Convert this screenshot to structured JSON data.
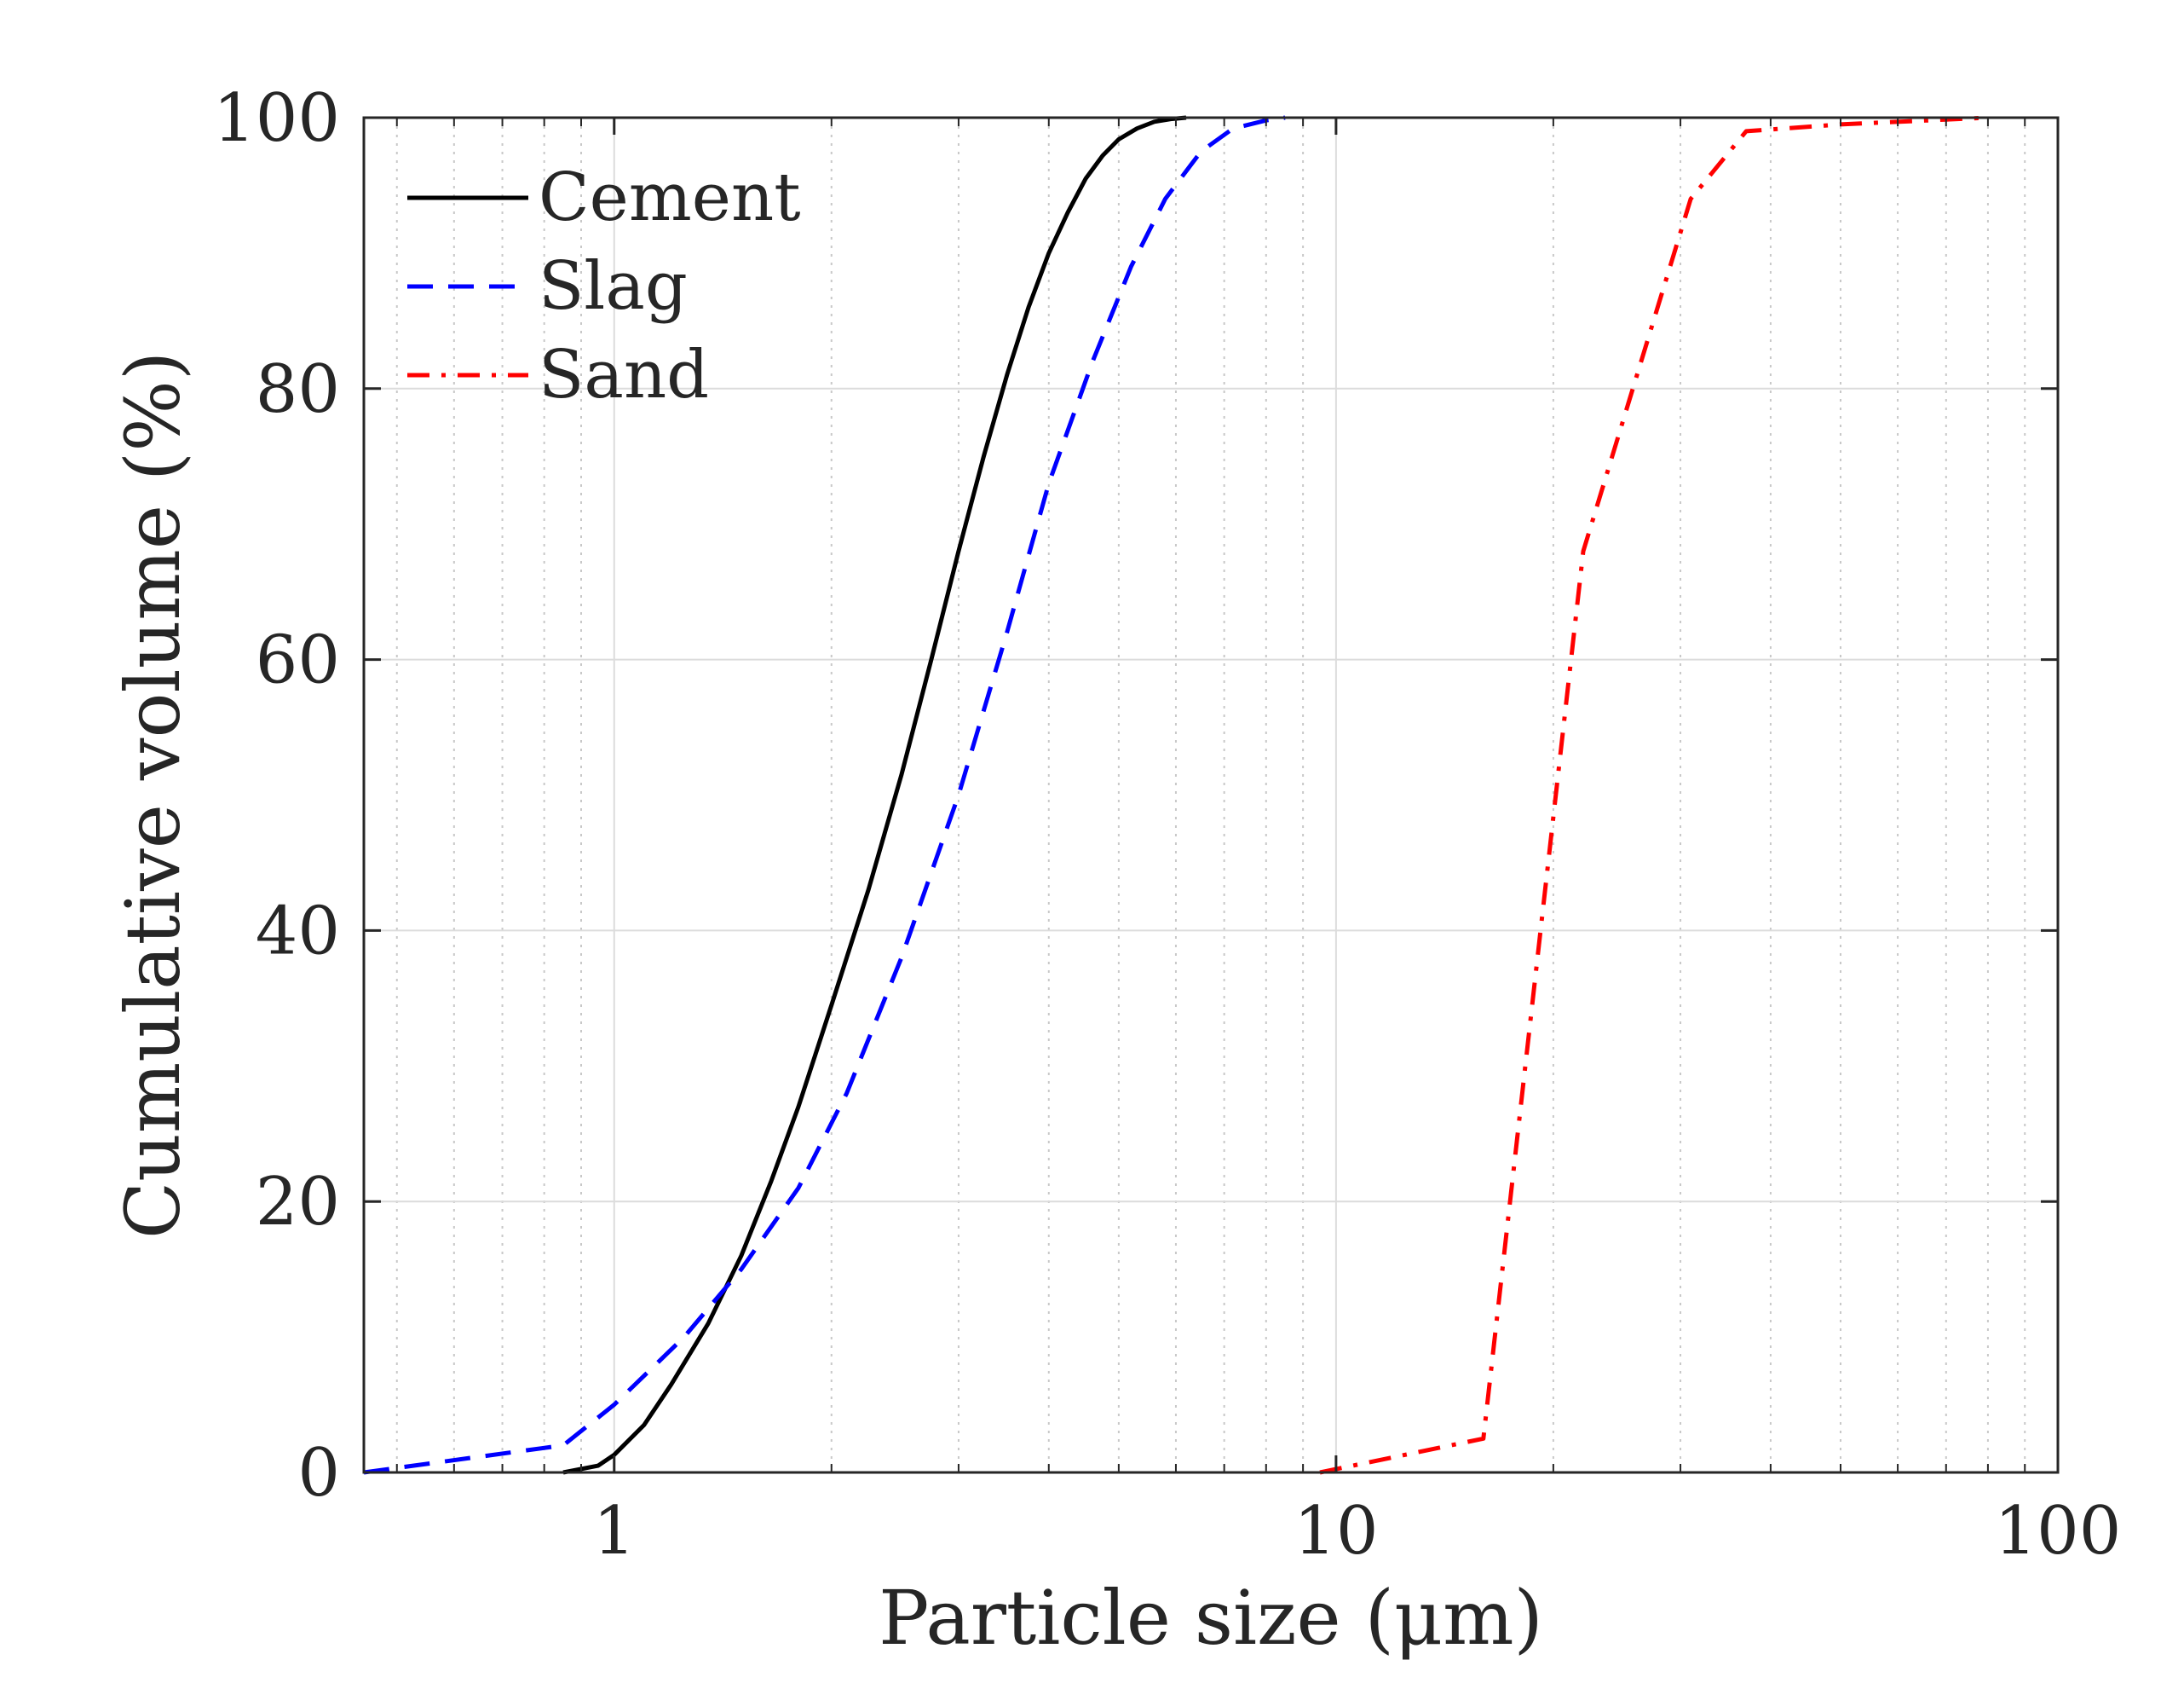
{
  "chart_data": {
    "type": "line",
    "title": "",
    "xlabel": "Particle size (μm)",
    "ylabel": "Cumulative volume (%)",
    "xscale": "log",
    "xlim": [
      0.45,
      100
    ],
    "ylim": [
      0,
      100
    ],
    "xticks": [
      1,
      10,
      100
    ],
    "xtick_labels": [
      "1",
      "10",
      "100"
    ],
    "yticks": [
      0,
      20,
      40,
      60,
      80,
      100
    ],
    "ytick_labels": [
      "0",
      "20",
      "40",
      "60",
      "80",
      "100"
    ],
    "grid": true,
    "legend_position": "top-left",
    "series": [
      {
        "name": "Cement",
        "color": "#000000",
        "style": "solid",
        "x": [
          0.85,
          0.95,
          1.0,
          1.1,
          1.2,
          1.35,
          1.5,
          1.65,
          1.8,
          2.0,
          2.25,
          2.5,
          2.75,
          3.0,
          3.25,
          3.5,
          3.75,
          4.0,
          4.25,
          4.5,
          4.75,
          5.0,
          5.3,
          5.6,
          5.9,
          6.2
        ],
        "y": [
          0,
          0.5,
          1.3,
          3.5,
          6.5,
          11,
          16,
          21.5,
          27,
          34.5,
          43,
          51.5,
          60,
          68,
          75,
          81,
          86,
          90,
          93,
          95.5,
          97.2,
          98.4,
          99.2,
          99.7,
          99.9,
          100
        ]
      },
      {
        "name": "Slag",
        "color": "#0000FF",
        "style": "dashed",
        "x": [
          0.45,
          0.85,
          1.0,
          1.25,
          1.5,
          1.8,
          2.1,
          2.5,
          3.0,
          3.5,
          4.0,
          4.6,
          5.2,
          5.8,
          6.5,
          7.2,
          8.0,
          8.5
        ],
        "y": [
          0,
          2,
          5,
          10,
          15,
          21,
          28,
          38,
          50,
          62,
          73,
          82,
          89,
          94,
          97.5,
          99.2,
          99.8,
          100
        ]
      },
      {
        "name": "Sand",
        "color": "#FF0000",
        "style": "dashdot",
        "x": [
          9.5,
          16,
          22,
          31,
          37,
          50,
          80
        ],
        "y": [
          0,
          2.5,
          68,
          94,
          99,
          99.5,
          100
        ]
      }
    ]
  }
}
